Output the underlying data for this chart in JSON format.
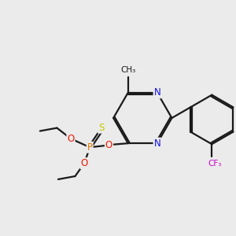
{
  "bg_color": "#ebebeb",
  "bond_color": "#1a1a1a",
  "bond_lw": 1.6,
  "atom_colors": {
    "N": "#1010ee",
    "O": "#ee1800",
    "P": "#e07800",
    "S": "#c8c800",
    "F": "#cc00cc",
    "C": "#1a1a1a"
  },
  "font_size": 8.5
}
